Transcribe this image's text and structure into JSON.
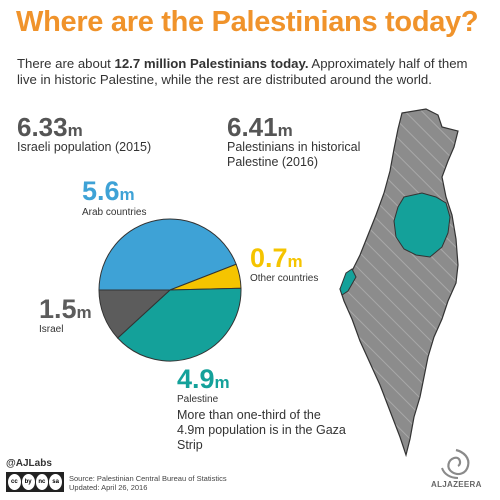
{
  "header": {
    "title": "Where are the Palestinians today?",
    "subtitle_lead": "There are about ",
    "subtitle_bold": "12.7 million Palestinians today.",
    "subtitle_rest": " Approximately half of them live in historic Palestine, while the rest are distributed around the world."
  },
  "stats": {
    "israeli_population": {
      "value": "6.33",
      "unit": "m",
      "label": "Israeli population (2015)"
    },
    "historic_palestine": {
      "value": "6.41",
      "unit": "m",
      "label": "Palestinians in historical Palestine (2016)"
    }
  },
  "chart_data": {
    "type": "pie",
    "title": "",
    "slices": [
      {
        "label": "Arab countries",
        "value": 5.6,
        "display": "5.6",
        "unit": "m",
        "color": "#3ea2d6"
      },
      {
        "label": "Other countries",
        "value": 0.7,
        "display": "0.7",
        "unit": "m",
        "color": "#f5c400"
      },
      {
        "label": "Palestine",
        "value": 4.9,
        "display": "4.9",
        "unit": "m",
        "color": "#14a19a"
      },
      {
        "label": "Israel",
        "value": 1.5,
        "display": "1.5",
        "unit": "m",
        "color": "#5c5c5c"
      }
    ],
    "start_direction": "clockwise from left"
  },
  "note": "More than one-third of the 4.9m population is in the Gaza Strip",
  "map": {
    "colors": {
      "land": "#8c8c8c",
      "hatch": "#a8a8a8",
      "palestine": "#14a19a",
      "outline": "#333333"
    }
  },
  "footer": {
    "handle": "@AJLabs",
    "license_icons": [
      "cc",
      "by",
      "nc",
      "sa"
    ],
    "source": "Source: Palestinian Central Bureau of Statistics",
    "updated": "Updated: April 26, 2016",
    "logo": "ALJAZEERA"
  }
}
